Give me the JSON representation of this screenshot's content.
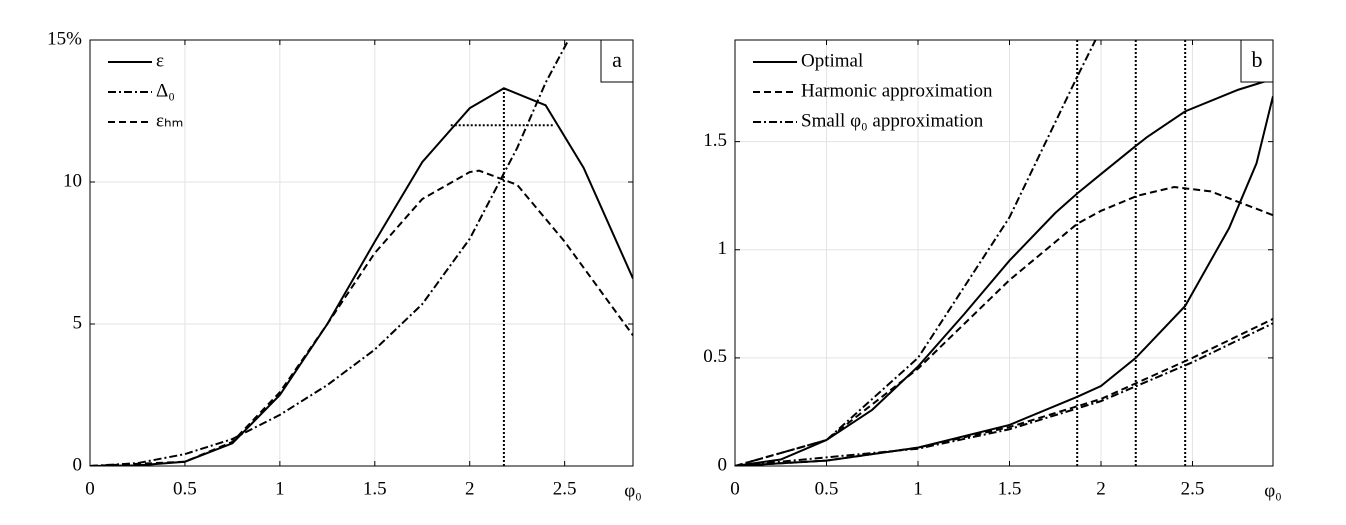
{
  "chart_data": [
    {
      "type": "line",
      "panel_label": "a",
      "x_label": "φ₀",
      "xlim": [
        0,
        2.86
      ],
      "ylim": [
        0,
        15
      ],
      "xticks": [
        0,
        0.5,
        1,
        1.5,
        2,
        2.5
      ],
      "yticks": [
        0,
        5,
        10,
        {
          "value": 15,
          "label": "15%"
        }
      ],
      "grid": true,
      "legend": "upper left",
      "series": [
        {
          "name": "ε",
          "color": "#000000",
          "style": "solid",
          "curves": [
            {
              "x": [
                0,
                0.25,
                0.5,
                0.75,
                1,
                1.25,
                1.5,
                1.75,
                2,
                2.18,
                2.4,
                2.6,
                2.86
              ],
              "values": [
                0,
                0.02,
                0.15,
                0.8,
                2.5,
                5.0,
                7.9,
                10.7,
                12.6,
                13.3,
                12.7,
                10.5,
                6.6
              ]
            }
          ]
        },
        {
          "name": "Δ₀",
          "color": "#000000",
          "style": "dashdot",
          "curves": [
            {
              "x": [
                0,
                0.25,
                0.5,
                0.75,
                1,
                1.25,
                1.5,
                1.75,
                2,
                2.25,
                2.4,
                2.52
              ],
              "values": [
                0,
                0.1,
                0.42,
                0.95,
                1.8,
                2.85,
                4.1,
                5.7,
                8.0,
                11.2,
                13.5,
                15
              ]
            }
          ]
        },
        {
          "name": "εₕₘ",
          "color": "#000000",
          "style": "dashed",
          "curves": [
            {
              "x": [
                0,
                0.5,
                0.75,
                1,
                1.25,
                1.5,
                1.75,
                2,
                2.05,
                2.25,
                2.5,
                2.86
              ],
              "values": [
                0,
                0.15,
                0.85,
                2.6,
                5.0,
                7.5,
                9.4,
                10.35,
                10.4,
                9.9,
                7.9,
                4.6
              ]
            }
          ]
        }
      ],
      "ref_lines": [
        {
          "x": [
            2.18,
            2.18
          ],
          "values": [
            0,
            13.3
          ]
        },
        {
          "x": [
            1.9,
            2.44
          ],
          "values": [
            12,
            12
          ]
        }
      ]
    },
    {
      "type": "line",
      "panel_label": "b",
      "x_label": "φ₀",
      "xlim": [
        0,
        2.94
      ],
      "ylim": [
        0,
        1.97
      ],
      "xticks": [
        0,
        0.5,
        1,
        1.5,
        2,
        2.5
      ],
      "yticks": [
        0,
        0.5,
        1,
        1.5
      ],
      "grid": true,
      "legend": "upper left",
      "series": [
        {
          "name": "Optimal",
          "color": "#000000",
          "style": "solid",
          "curves": [
            {
              "x": [
                0,
                0.25,
                0.5,
                0.75,
                1,
                1.25,
                1.5,
                1.75,
                1.87,
                2,
                2.19,
                2.25,
                2.46,
                2.75,
                2.94
              ],
              "values": [
                0,
                0.03,
                0.12,
                0.26,
                0.46,
                0.7,
                0.95,
                1.17,
                1.26,
                1.35,
                1.48,
                1.52,
                1.64,
                1.74,
                1.79
              ]
            },
            {
              "x": [
                0,
                0.5,
                1,
                1.5,
                1.87,
                2,
                2.19,
                2.46,
                2.7,
                2.85,
                2.94
              ],
              "values": [
                0,
                0.025,
                0.085,
                0.19,
                0.32,
                0.37,
                0.5,
                0.74,
                1.1,
                1.4,
                1.71
              ]
            }
          ]
        },
        {
          "name": "Harmonic approximation",
          "color": "#000000",
          "style": "dashed",
          "curves": [
            {
              "x": [
                0,
                0.5,
                1,
                1.5,
                1.87,
                2,
                2.2,
                2.4,
                2.6,
                2.94
              ],
              "values": [
                0,
                0.12,
                0.45,
                0.86,
                1.12,
                1.18,
                1.25,
                1.29,
                1.27,
                1.16
              ]
            },
            {
              "x": [
                0,
                0.5,
                1,
                1.5,
                2,
                2.5,
                2.94
              ],
              "values": [
                0,
                0.025,
                0.085,
                0.18,
                0.31,
                0.5,
                0.68
              ]
            }
          ]
        },
        {
          "name": "Small φ₀ approximation",
          "color": "#000000",
          "style": "dashdot",
          "curves": [
            {
              "x": [
                0,
                0.5,
                1,
                1.5,
                1.87,
                1.97
              ],
              "values": [
                0,
                0.12,
                0.5,
                1.15,
                1.8,
                1.97
              ]
            },
            {
              "x": [
                0,
                1,
                1.5,
                2,
                2.5,
                2.94
              ],
              "values": [
                0,
                0.08,
                0.17,
                0.3,
                0.48,
                0.66
              ]
            }
          ]
        }
      ],
      "ref_lines": [
        {
          "x": [
            1.87,
            1.87
          ],
          "values": [
            0,
            1.97
          ]
        },
        {
          "x": [
            2.19,
            2.19
          ],
          "values": [
            0,
            1.97
          ]
        },
        {
          "x": [
            2.46,
            2.46
          ],
          "values": [
            0,
            1.97
          ]
        }
      ]
    }
  ]
}
